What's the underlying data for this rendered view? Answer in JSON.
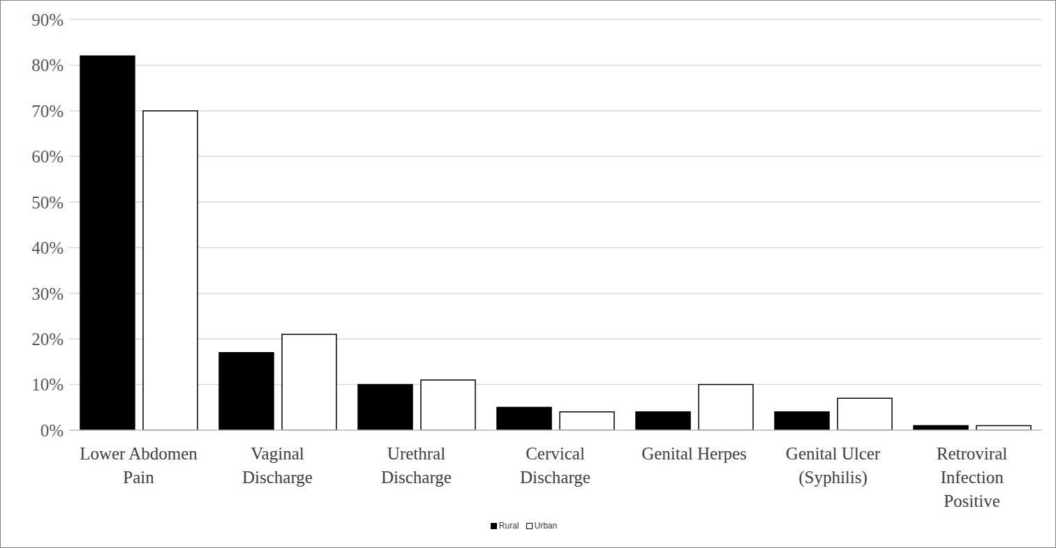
{
  "chart_data": {
    "type": "bar",
    "categories": [
      "Lower Abdomen Pain",
      "Vaginal Discharge",
      "Urethral Discharge",
      "Cervical Discharge",
      "Genital Herpes",
      "Genital Ulcer (Syphilis)",
      "Retroviral Infection Positive"
    ],
    "series": [
      {
        "name": "Rural",
        "color": "#000000",
        "values": [
          82,
          17,
          10,
          5,
          4,
          4,
          1
        ]
      },
      {
        "name": "Urban",
        "color": "#ffffff",
        "values": [
          70,
          21,
          11,
          4,
          10,
          7,
          1
        ]
      }
    ],
    "ylim": [
      0,
      90
    ],
    "yticks": [
      {
        "value": 0,
        "label": "0%"
      },
      {
        "value": 10,
        "label": "10%"
      },
      {
        "value": 20,
        "label": "20%"
      },
      {
        "value": 30,
        "label": "30%"
      },
      {
        "value": 40,
        "label": "40%"
      },
      {
        "value": 50,
        "label": "50%"
      },
      {
        "value": 60,
        "label": "60%"
      },
      {
        "value": 70,
        "label": "70%"
      },
      {
        "value": 80,
        "label": "80%"
      },
      {
        "value": 90,
        "label": "90%"
      }
    ],
    "grid": true,
    "legend": "bottom"
  }
}
